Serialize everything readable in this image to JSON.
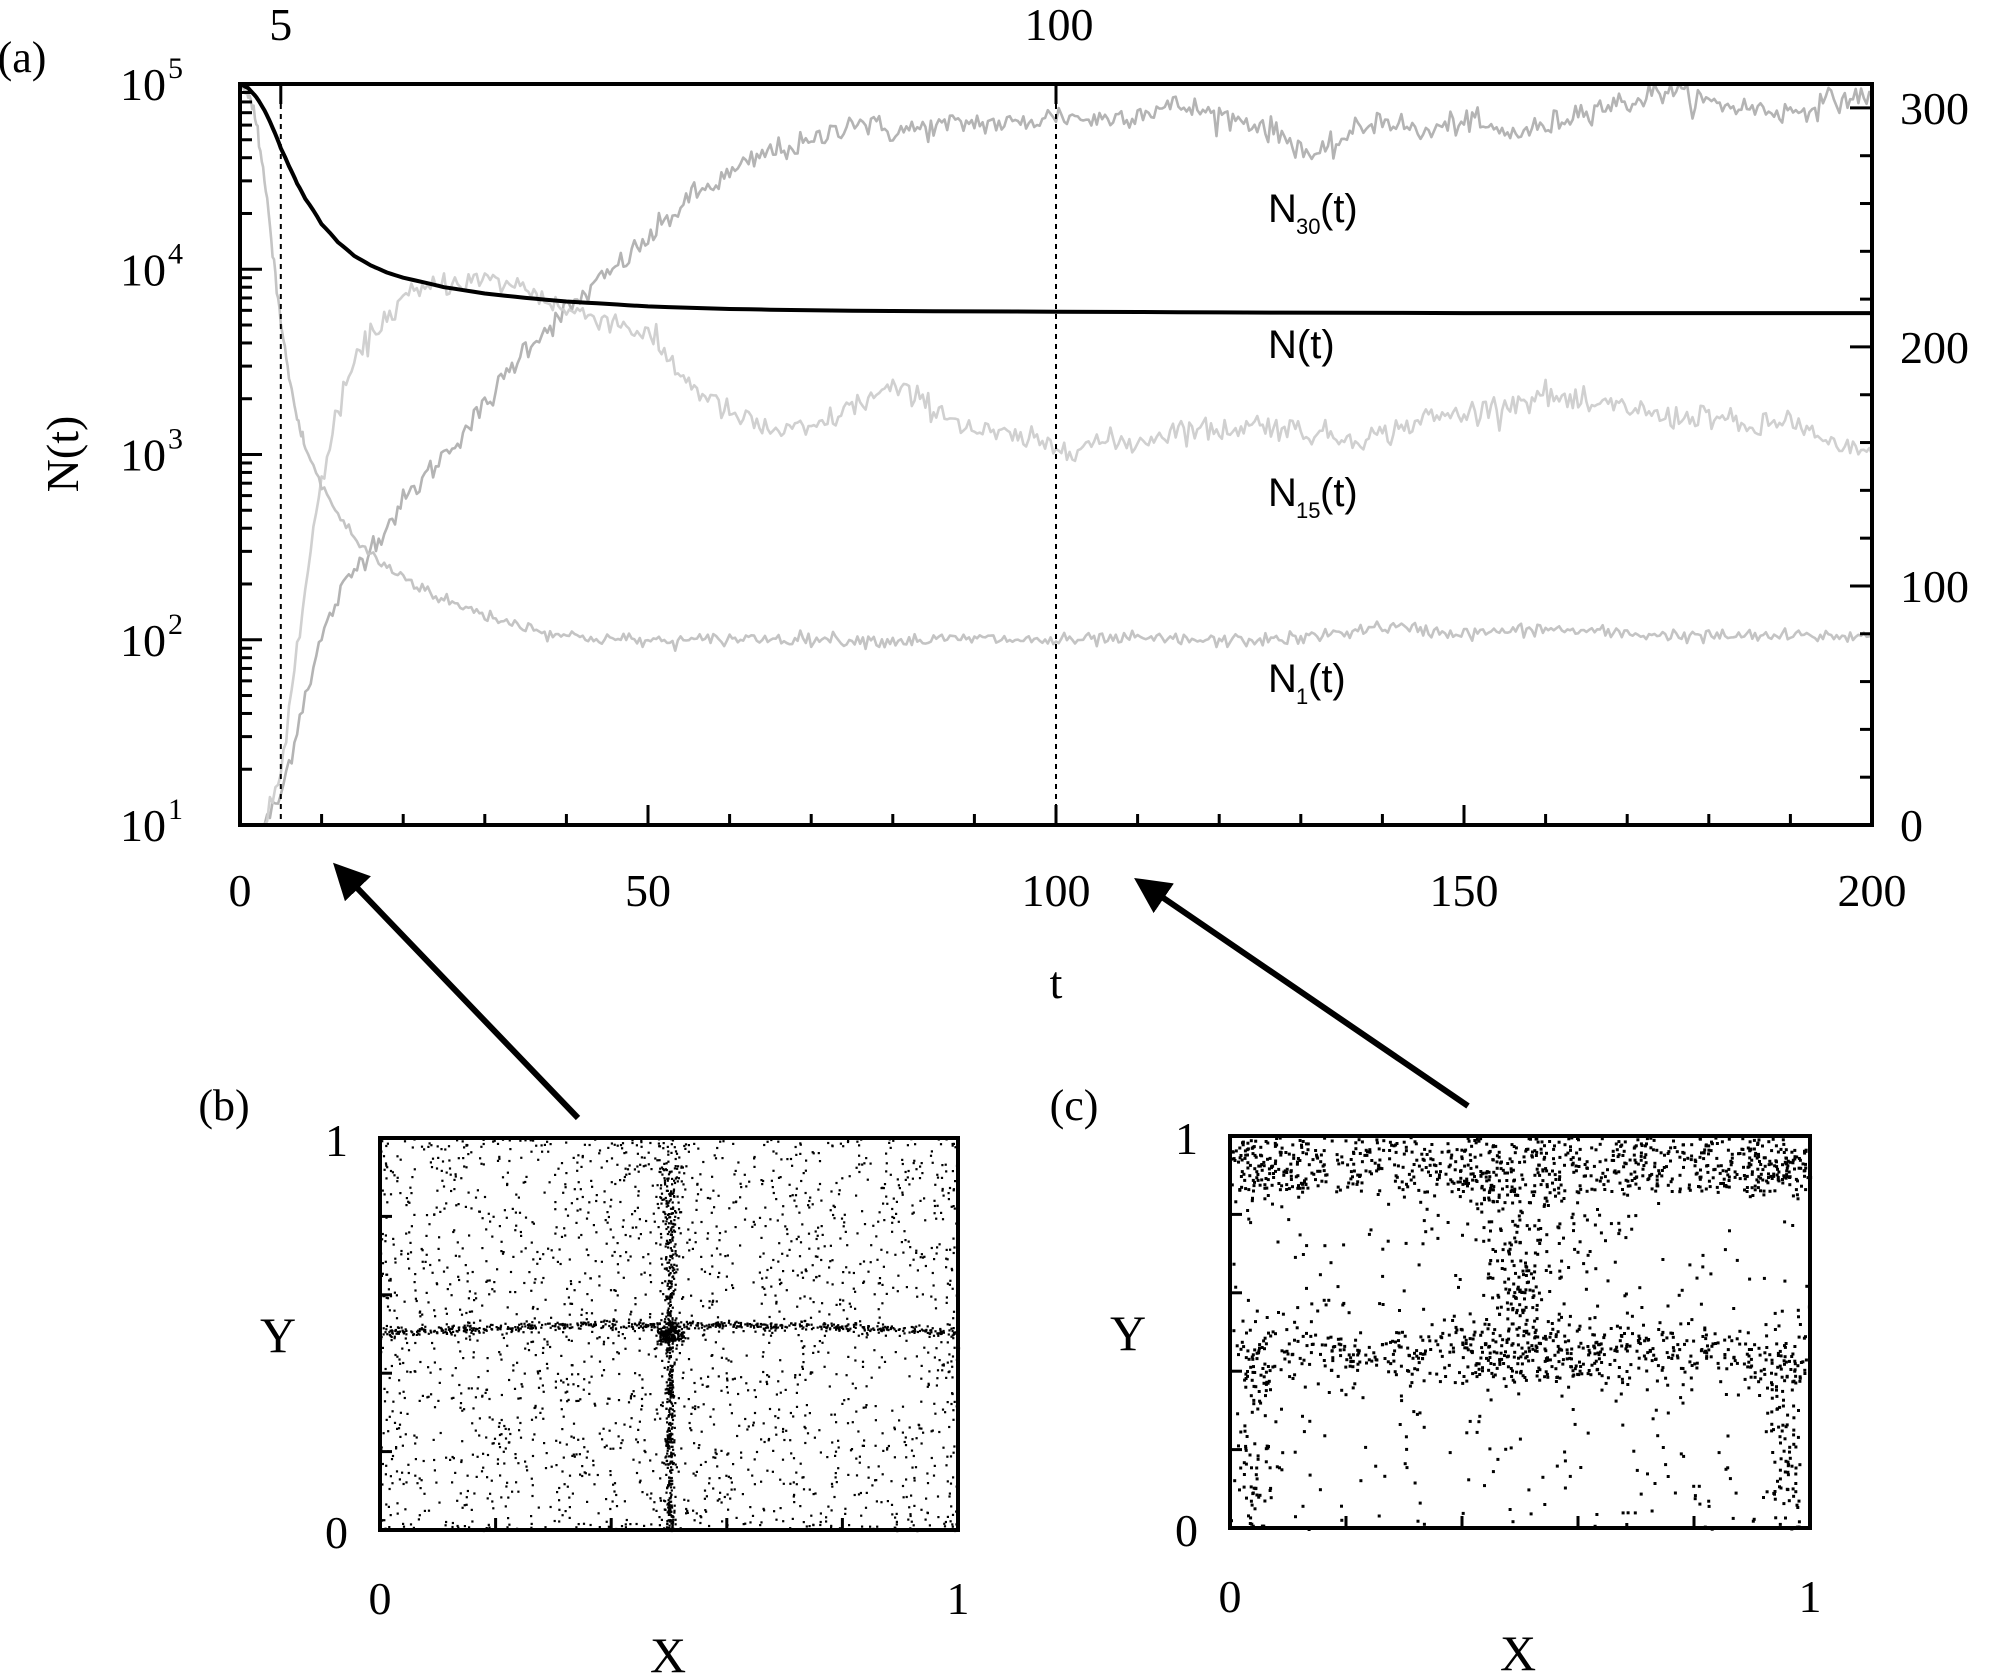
{
  "chart_data": [
    {
      "panel": "(a)",
      "type": "line",
      "xlabel": "t",
      "ylabel": "N(t)",
      "xlim": [
        0,
        200
      ],
      "ylim_log": [
        10,
        100000
      ],
      "y_scale": "log",
      "y2lim": [
        0,
        310
      ],
      "x_ticks": [
        "0",
        "50",
        "100",
        "150",
        "200"
      ],
      "y_ticks": [
        "10",
        "10",
        "10",
        "10",
        "10"
      ],
      "y_tick_exponents": [
        "1",
        "2",
        "3",
        "4",
        "5"
      ],
      "y2_ticks": [
        "0",
        "100",
        "200",
        "300"
      ],
      "top_ticks": [
        "5",
        "100"
      ],
      "vlines": [
        5,
        100
      ],
      "series": [
        {
          "name": "N(t)",
          "axis": "left-log",
          "color": "#000000",
          "x": [
            0,
            1,
            2,
            3,
            4,
            5,
            6,
            7,
            8,
            10,
            12,
            14,
            16,
            18,
            20,
            25,
            30,
            35,
            40,
            45,
            50,
            60,
            70,
            80,
            100,
            120,
            150,
            200
          ],
          "y": [
            100000,
            95000,
            85000,
            72000,
            58000,
            45000,
            36000,
            29000,
            24000,
            17500,
            14000,
            11800,
            10500,
            9600,
            9000,
            8000,
            7400,
            7000,
            6700,
            6500,
            6300,
            6100,
            6000,
            5950,
            5900,
            5850,
            5800,
            5800
          ]
        },
        {
          "name": "N",
          "name_subscript": "30",
          "name_suffix": "(t)",
          "axis": "right-linear",
          "color": "#b4b4b4",
          "x": [
            3,
            5,
            8,
            10,
            12,
            15,
            18,
            20,
            25,
            30,
            35,
            40,
            45,
            50,
            55,
            60,
            65,
            70,
            75,
            80,
            85,
            90,
            95,
            100,
            105,
            110,
            115,
            120,
            125,
            130,
            132,
            135,
            140,
            145,
            150,
            155,
            160,
            165,
            170,
            175,
            180,
            185,
            190,
            195,
            200
          ],
          "y": [
            0,
            12,
            55,
            78,
            95,
            112,
            125,
            135,
            155,
            175,
            200,
            215,
            230,
            245,
            262,
            272,
            282,
            285,
            295,
            290,
            292,
            294,
            293,
            297,
            295,
            298,
            301,
            297,
            293,
            284,
            278,
            287,
            296,
            289,
            295,
            289,
            292,
            300,
            302,
            308,
            302,
            300,
            298,
            303,
            305
          ]
        },
        {
          "name": "N",
          "name_subscript": "15",
          "name_suffix": "(t)",
          "axis": "right-linear",
          "color": "#d0d0d0",
          "x": [
            3,
            5,
            7,
            10,
            13,
            16,
            20,
            25,
            30,
            35,
            40,
            45,
            50,
            55,
            60,
            65,
            70,
            75,
            80,
            85,
            90,
            95,
            100,
            105,
            110,
            115,
            120,
            125,
            130,
            135,
            140,
            145,
            150,
            155,
            160,
            165,
            170,
            175,
            180,
            185,
            190,
            195,
            200
          ],
          "y": [
            0,
            20,
            75,
            145,
            185,
            205,
            220,
            227,
            228,
            225,
            215,
            212,
            205,
            185,
            172,
            165,
            165,
            175,
            183,
            175,
            165,
            162,
            158,
            160,
            160,
            166,
            165,
            168,
            165,
            162,
            163,
            170,
            172,
            176,
            180,
            175,
            175,
            170,
            172,
            165,
            170,
            158,
            155
          ]
        },
        {
          "name": "N",
          "name_subscript": "1",
          "name_suffix": "(t)",
          "axis": "right-linear",
          "color": "#c4c4c4",
          "x": [
            0,
            1,
            2,
            3,
            4,
            5,
            6,
            7,
            8,
            10,
            12,
            14,
            16,
            18,
            20,
            25,
            30,
            35,
            40,
            45,
            50,
            55,
            60,
            70,
            80,
            90,
            100,
            110,
            120,
            130,
            140,
            150,
            160,
            170,
            180,
            190,
            200
          ],
          "y": [
            310,
            305,
            295,
            270,
            240,
            210,
            188,
            170,
            158,
            142,
            130,
            120,
            113,
            108,
            104,
            94,
            88,
            83,
            79,
            78,
            77,
            77,
            78,
            78,
            77,
            78,
            77,
            78,
            77,
            78,
            83,
            80,
            82,
            80,
            79,
            79,
            79
          ]
        }
      ]
    },
    {
      "panel": "(b)",
      "type": "scatter",
      "xlabel": "X",
      "ylabel": "Y",
      "xlim": [
        0,
        1
      ],
      "ylim": [
        0,
        1
      ],
      "x_ticks": [
        "0",
        "1"
      ],
      "y_ticks": [
        "0",
        "1"
      ],
      "structure": "uniform background with dense vertical line at X≈0.5 and dense horizontal band at Y≈0.5",
      "point_count": 3500
    },
    {
      "panel": "(c)",
      "type": "scatter",
      "xlabel": "X",
      "ylabel": "Y",
      "xlim": [
        0,
        1
      ],
      "ylim": [
        0,
        1
      ],
      "x_ticks": [
        "0",
        "1"
      ],
      "y_ticks": [
        "0",
        "1"
      ],
      "structure": "sparse points, dense bands near Y≈1, horizontal band at Y≈0.4–0.5, vertical funnel near X≈0.5",
      "point_count": 2200
    }
  ]
}
